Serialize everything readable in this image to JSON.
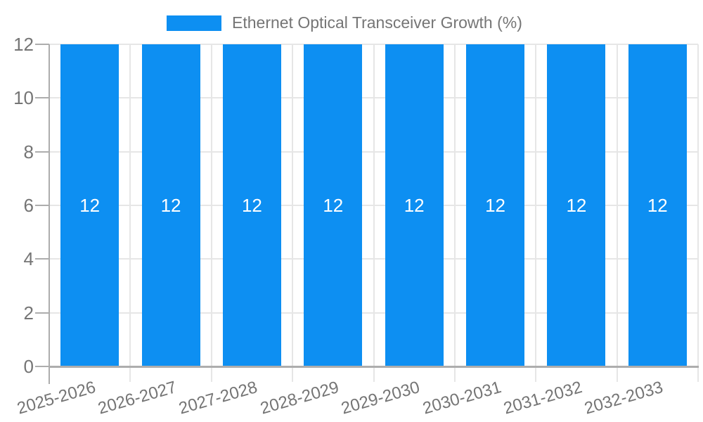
{
  "chart_data": {
    "type": "bar",
    "title": "",
    "legend": {
      "label": "Ethernet Optical Transceiver Growth (%)",
      "position": "top-center"
    },
    "categories": [
      "2025-2026",
      "2026-2027",
      "2027-2028",
      "2028-2029",
      "2029-2030",
      "2030-2031",
      "2031-2032",
      "2032-2033"
    ],
    "series": [
      {
        "name": "Ethernet Optical Transceiver Growth (%)",
        "values": [
          12,
          12,
          12,
          12,
          12,
          12,
          12,
          12
        ]
      }
    ],
    "bar_value_labels": [
      "12",
      "12",
      "12",
      "12",
      "12",
      "12",
      "12",
      "12"
    ],
    "xlabel": "",
    "ylabel": "",
    "y_ticks": [
      0,
      2,
      4,
      6,
      8,
      10,
      12
    ],
    "ylim": [
      0,
      12
    ],
    "grid": true,
    "x_labels_rotation_deg": -16,
    "colors": {
      "bar": "#0D8FF2",
      "axis_text": "#757575",
      "bar_label_text": "#FFFFFF",
      "grid_line": "#E6E6E6",
      "axis_line": "#ADADAD",
      "background": "#FFFFFF"
    }
  }
}
